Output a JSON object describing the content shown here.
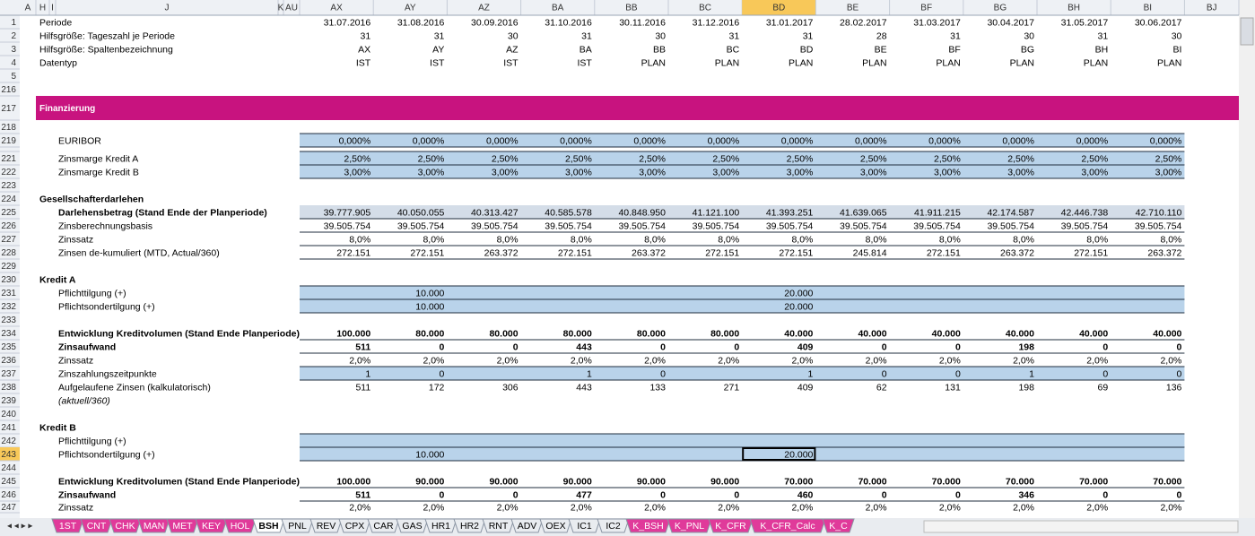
{
  "columns": [
    "A",
    "H",
    "I",
    "J",
    "K",
    "AU",
    "AX",
    "AY",
    "AZ",
    "BA",
    "BB",
    "BC",
    "BD",
    "BE",
    "BF",
    "BG",
    "BH",
    "BI",
    "BJ"
  ],
  "rows": [
    {
      "num": "1",
      "label": "Periode",
      "cells": [
        "31.07.2016",
        "31.08.2016",
        "30.09.2016",
        "31.10.2016",
        "30.11.2016",
        "31.12.2016",
        "31.01.2017",
        "28.02.2017",
        "31.03.2017",
        "30.04.2017",
        "31.05.2017",
        "30.06.2017"
      ]
    },
    {
      "num": "2",
      "label": "Hilfsgröße: Tageszahl je Periode",
      "cells": [
        "31",
        "31",
        "30",
        "31",
        "30",
        "31",
        "31",
        "28",
        "31",
        "30",
        "31",
        "30"
      ]
    },
    {
      "num": "3",
      "label": "Hilfsgröße: Spaltenbezeichnung",
      "cells": [
        "AX",
        "AY",
        "AZ",
        "BA",
        "BB",
        "BC",
        "BD",
        "BE",
        "BF",
        "BG",
        "BH",
        "BI"
      ]
    },
    {
      "num": "4",
      "label": "Datentyp",
      "cells": [
        "IST",
        "IST",
        "IST",
        "IST",
        "PLAN",
        "PLAN",
        "PLAN",
        "PLAN",
        "PLAN",
        "PLAN",
        "PLAN",
        "PLAN"
      ]
    },
    {
      "num": "5"
    },
    {
      "num": "216"
    },
    {
      "num": "217",
      "label": "Finanzierung"
    },
    {
      "num": "218"
    },
    {
      "num": "219",
      "label": "EURIBOR",
      "cells": [
        "0,000%",
        "0,000%",
        "0,000%",
        "0,000%",
        "0,000%",
        "0,000%",
        "0,000%",
        "0,000%",
        "0,000%",
        "0,000%",
        "0,000%",
        "0,000%"
      ]
    },
    {
      "num": "220"
    },
    {
      "num": "221",
      "label": "Zinsmarge Kredit A",
      "cells": [
        "2,50%",
        "2,50%",
        "2,50%",
        "2,50%",
        "2,50%",
        "2,50%",
        "2,50%",
        "2,50%",
        "2,50%",
        "2,50%",
        "2,50%",
        "2,50%"
      ]
    },
    {
      "num": "222",
      "label": "Zinsmarge Kredit B",
      "cells": [
        "3,00%",
        "3,00%",
        "3,00%",
        "3,00%",
        "3,00%",
        "3,00%",
        "3,00%",
        "3,00%",
        "3,00%",
        "3,00%",
        "3,00%",
        "3,00%"
      ]
    },
    {
      "num": "223"
    },
    {
      "num": "224",
      "label": "Gesellschafterdarlehen"
    },
    {
      "num": "225",
      "label": "Darlehensbetrag (Stand Ende der Planperiode)",
      "cells": [
        "39.777.905",
        "40.050.055",
        "40.313.427",
        "40.585.578",
        "40.848.950",
        "41.121.100",
        "41.393.251",
        "41.639.065",
        "41.911.215",
        "42.174.587",
        "42.446.738",
        "42.710.110"
      ]
    },
    {
      "num": "226",
      "label": "Zinsberechnungsbasis",
      "cells": [
        "39.505.754",
        "39.505.754",
        "39.505.754",
        "39.505.754",
        "39.505.754",
        "39.505.754",
        "39.505.754",
        "39.505.754",
        "39.505.754",
        "39.505.754",
        "39.505.754",
        "39.505.754"
      ]
    },
    {
      "num": "227",
      "label": "Zinssatz",
      "cells": [
        "8,0%",
        "8,0%",
        "8,0%",
        "8,0%",
        "8,0%",
        "8,0%",
        "8,0%",
        "8,0%",
        "8,0%",
        "8,0%",
        "8,0%",
        "8,0%"
      ]
    },
    {
      "num": "228",
      "label": "Zinsen de-kumuliert (MTD, Actual/360)",
      "cells": [
        "272.151",
        "272.151",
        "263.372",
        "272.151",
        "263.372",
        "272.151",
        "272.151",
        "245.814",
        "272.151",
        "263.372",
        "272.151",
        "263.372"
      ]
    },
    {
      "num": "229"
    },
    {
      "num": "230",
      "label": "Kredit A"
    },
    {
      "num": "231",
      "label": "Pflichttilgung (+)",
      "cells": [
        null,
        "10.000",
        null,
        null,
        null,
        null,
        "20.000",
        null,
        null,
        null,
        null,
        null
      ]
    },
    {
      "num": "232",
      "label": "Pflichtsondertilgung (+)",
      "cells": [
        null,
        "10.000",
        null,
        null,
        null,
        null,
        "20.000",
        null,
        null,
        null,
        null,
        null
      ]
    },
    {
      "num": "233"
    },
    {
      "num": "234",
      "label": "Entwicklung Kreditvolumen (Stand Ende Planperiode)",
      "cells": [
        "100.000",
        "80.000",
        "80.000",
        "80.000",
        "80.000",
        "80.000",
        "40.000",
        "40.000",
        "40.000",
        "40.000",
        "40.000",
        "40.000"
      ]
    },
    {
      "num": "235",
      "label": "Zinsaufwand",
      "cells": [
        "511",
        "0",
        "0",
        "443",
        "0",
        "0",
        "409",
        "0",
        "0",
        "198",
        "0",
        "0"
      ]
    },
    {
      "num": "236",
      "label": "Zinssatz",
      "cells": [
        "2,0%",
        "2,0%",
        "2,0%",
        "2,0%",
        "2,0%",
        "2,0%",
        "2,0%",
        "2,0%",
        "2,0%",
        "2,0%",
        "2,0%",
        "2,0%"
      ]
    },
    {
      "num": "237",
      "label": "Zinszahlungszeitpunkte",
      "cells": [
        "1",
        "0",
        null,
        "1",
        "0",
        null,
        "1",
        "0",
        "0",
        "1",
        "0",
        "0"
      ]
    },
    {
      "num": "238",
      "label": "Aufgelaufene Zinsen (kalkulatorisch)",
      "cells": [
        "511",
        "172",
        "306",
        "443",
        "133",
        "271",
        "409",
        "62",
        "131",
        "198",
        "69",
        "136"
      ]
    },
    {
      "num": "239",
      "label": "(aktuell/360)"
    },
    {
      "num": "240"
    },
    {
      "num": "241",
      "label": "Kredit B"
    },
    {
      "num": "242",
      "label": "Pflichttilgung (+)",
      "cells": [
        null,
        null,
        null,
        null,
        null,
        null,
        null,
        null,
        null,
        null,
        null,
        null
      ]
    },
    {
      "num": "243",
      "label": "Pflichtsondertilgung (+)",
      "cells": [
        null,
        "10.000",
        null,
        null,
        null,
        null,
        "20.000",
        null,
        null,
        null,
        null,
        null
      ]
    },
    {
      "num": "244"
    },
    {
      "num": "245",
      "label": "Entwicklung Kreditvolumen (Stand Ende Planperiode)",
      "cells": [
        "100.000",
        "90.000",
        "90.000",
        "90.000",
        "90.000",
        "90.000",
        "70.000",
        "70.000",
        "70.000",
        "70.000",
        "70.000",
        "70.000"
      ]
    },
    {
      "num": "246",
      "label": "Zinsaufwand",
      "cells": [
        "511",
        "0",
        "0",
        "477",
        "0",
        "0",
        "460",
        "0",
        "0",
        "346",
        "0",
        "0"
      ]
    },
    {
      "num": "247",
      "label": "Zinssatz",
      "cells": [
        "2,0%",
        "2,0%",
        "2,0%",
        "2,0%",
        "2,0%",
        "2,0%",
        "2,0%",
        "2,0%",
        "2,0%",
        "2,0%",
        "2,0%",
        "2,0%"
      ]
    }
  ],
  "sheet_tabs": [
    "1ST",
    "CNT",
    "CHK",
    "MAN",
    "MET",
    "KEY",
    "HOL",
    "BSH",
    "PNL",
    "REV",
    "CPX",
    "CAR",
    "GAS",
    "HR1",
    "HR2",
    "RNT",
    "ADV",
    "OEX",
    "IC1",
    "IC2",
    "K_BSH",
    "K_PNL",
    "K_CFR",
    "K_CFR_Calc",
    "K_C"
  ]
}
